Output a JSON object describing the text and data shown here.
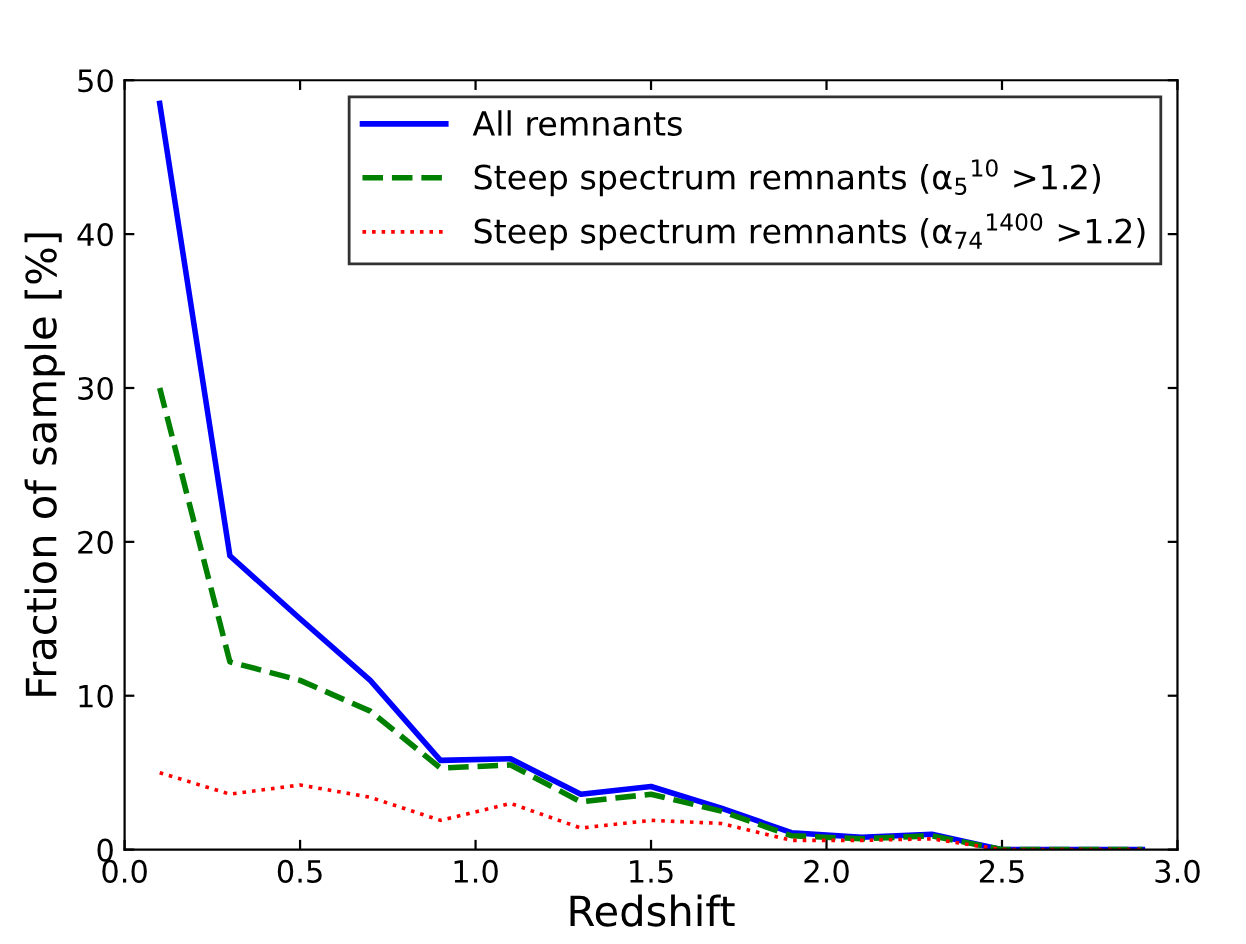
{
  "chart_data": {
    "type": "line",
    "xlabel": "Redshift",
    "ylabel": "Fraction of sample [%]",
    "x": [
      0.1,
      0.3,
      0.5,
      0.7,
      0.9,
      1.1,
      1.3,
      1.5,
      1.7,
      1.9,
      2.1,
      2.3,
      2.5,
      2.7,
      2.9
    ],
    "series": [
      {
        "name": "All remnants",
        "color": "#0000ff",
        "line_style": "solid",
        "values": [
          48.5,
          19.1,
          15.0,
          11.0,
          5.8,
          5.9,
          3.6,
          4.1,
          2.7,
          1.1,
          0.8,
          1.0,
          0,
          0,
          0
        ]
      },
      {
        "name": "Steep spectrum remnants (α$_{5}$$^{10}$ >1.2)",
        "color": "#008000",
        "line_style": "dashed",
        "values": [
          30.0,
          12.2,
          11.0,
          9.0,
          5.3,
          5.5,
          3.1,
          3.6,
          2.5,
          0.9,
          0.7,
          0.9,
          0,
          0,
          0
        ]
      },
      {
        "name": "Steep spectrum remnants (α$_{74}$$^{1400}$ >1.2)",
        "color": "#ff0000",
        "line_style": "dotted",
        "values": [
          5.0,
          3.6,
          4.2,
          3.4,
          1.9,
          3.0,
          1.4,
          1.9,
          1.7,
          0.6,
          0.6,
          0.7,
          0,
          0,
          0
        ]
      }
    ],
    "xlim": [
      0.0,
      3.0
    ],
    "ylim": [
      0,
      50
    ],
    "xticks": [
      {
        "value": 0,
        "label": "0.0"
      },
      {
        "value": 0.5,
        "label": "0.5"
      },
      {
        "value": 1,
        "label": "1.0"
      },
      {
        "value": 1.5,
        "label": "1.5"
      },
      {
        "value": 2,
        "label": "2.0"
      },
      {
        "value": 2.5,
        "label": "2.5"
      },
      {
        "value": 3,
        "label": "3.0"
      }
    ],
    "yticks": [
      0,
      10,
      20,
      30,
      40,
      50
    ],
    "legend": "top right",
    "grid": false,
    "marker": "none"
  }
}
